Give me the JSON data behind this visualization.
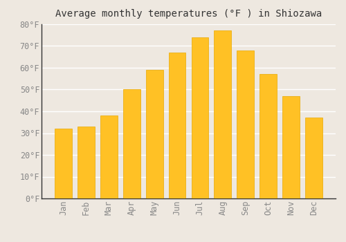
{
  "title": "Average monthly temperatures (°F ) in Shiozawa",
  "months": [
    "Jan",
    "Feb",
    "Mar",
    "Apr",
    "May",
    "Jun",
    "Jul",
    "Aug",
    "Sep",
    "Oct",
    "Nov",
    "Dec"
  ],
  "values": [
    32,
    33,
    38,
    50,
    59,
    67,
    74,
    77,
    68,
    57,
    47,
    37
  ],
  "bar_color": "#FFC125",
  "bar_edge_color": "#E8A800",
  "background_color": "#EEE8E0",
  "grid_color": "#FFFFFF",
  "ylim": [
    0,
    80
  ],
  "yticks": [
    0,
    10,
    20,
    30,
    40,
    50,
    60,
    70,
    80
  ],
  "title_fontsize": 10,
  "tick_fontsize": 8.5,
  "tick_color": "#888888",
  "axis_color": "#333333",
  "title_color": "#333333"
}
